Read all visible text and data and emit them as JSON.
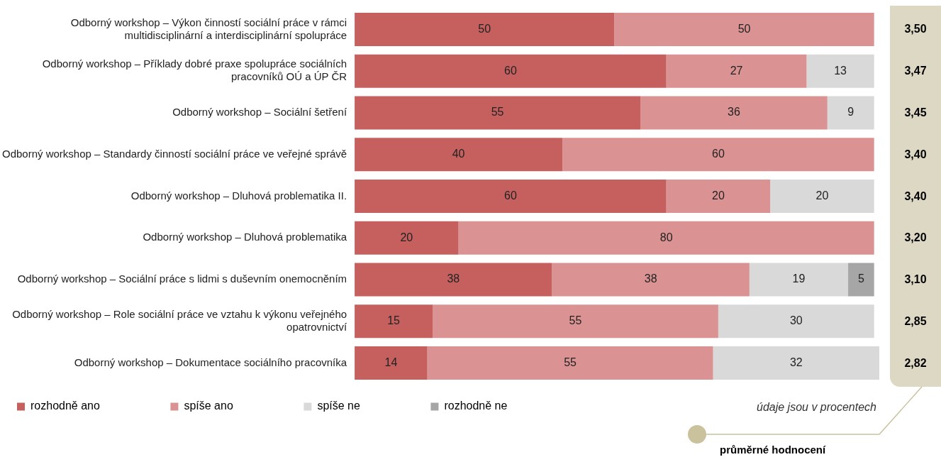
{
  "chart_data": {
    "type": "bar",
    "orientation": "horizontal",
    "stacked": true,
    "data_labels": true,
    "legend": "bottom",
    "tick_labels": "y",
    "categories": [
      "Odborný workshop – Výkon činností sociální práce v rámci multidisciplinární a interdisciplinární spolupráce",
      "Odborný workshop – Příklady dobré praxe spolupráce sociálních pracovníků OÚ a ÚP ČR",
      "Odborný workshop – Sociální šetření",
      "Odborný workshop – Standardy činností sociální práce ve veřejné správě",
      "Odborný workshop – Dluhová problematika II.",
      "Odborný workshop – Dluhová problematika",
      "Odborný workshop – Sociální práce s lidmi s duševním onemocněním",
      "Odborný workshop – Role sociální práce ve vztahu k výkonu veřejného opatrovnictví",
      "Odborný workshop – Dokumentace sociálního pracovníka"
    ],
    "series": [
      {
        "name": "rozhodně ano",
        "color": "#c5605e",
        "values": [
          50,
          60,
          55,
          40,
          60,
          20,
          38,
          15,
          14
        ]
      },
      {
        "name": "spíše ano",
        "color": "#da9392",
        "values": [
          50,
          27,
          36,
          60,
          20,
          80,
          38,
          55,
          55
        ]
      },
      {
        "name": "spíše ne",
        "color": "#d9d9d9",
        "values": [
          null,
          13,
          9,
          null,
          20,
          null,
          19,
          30,
          32
        ]
      },
      {
        "name": "rozhodně ne",
        "color": "#a6a6a6",
        "values": [
          null,
          null,
          null,
          null,
          null,
          null,
          5,
          null,
          null
        ]
      }
    ],
    "annotations": [
      "3,50",
      "3,47",
      "3,45",
      "3,40",
      "3,40",
      "3,20",
      "3,10",
      "2,85",
      "2,82",
      "údaje jsou v procentech",
      "průměrné hodnocení"
    ]
  }
}
